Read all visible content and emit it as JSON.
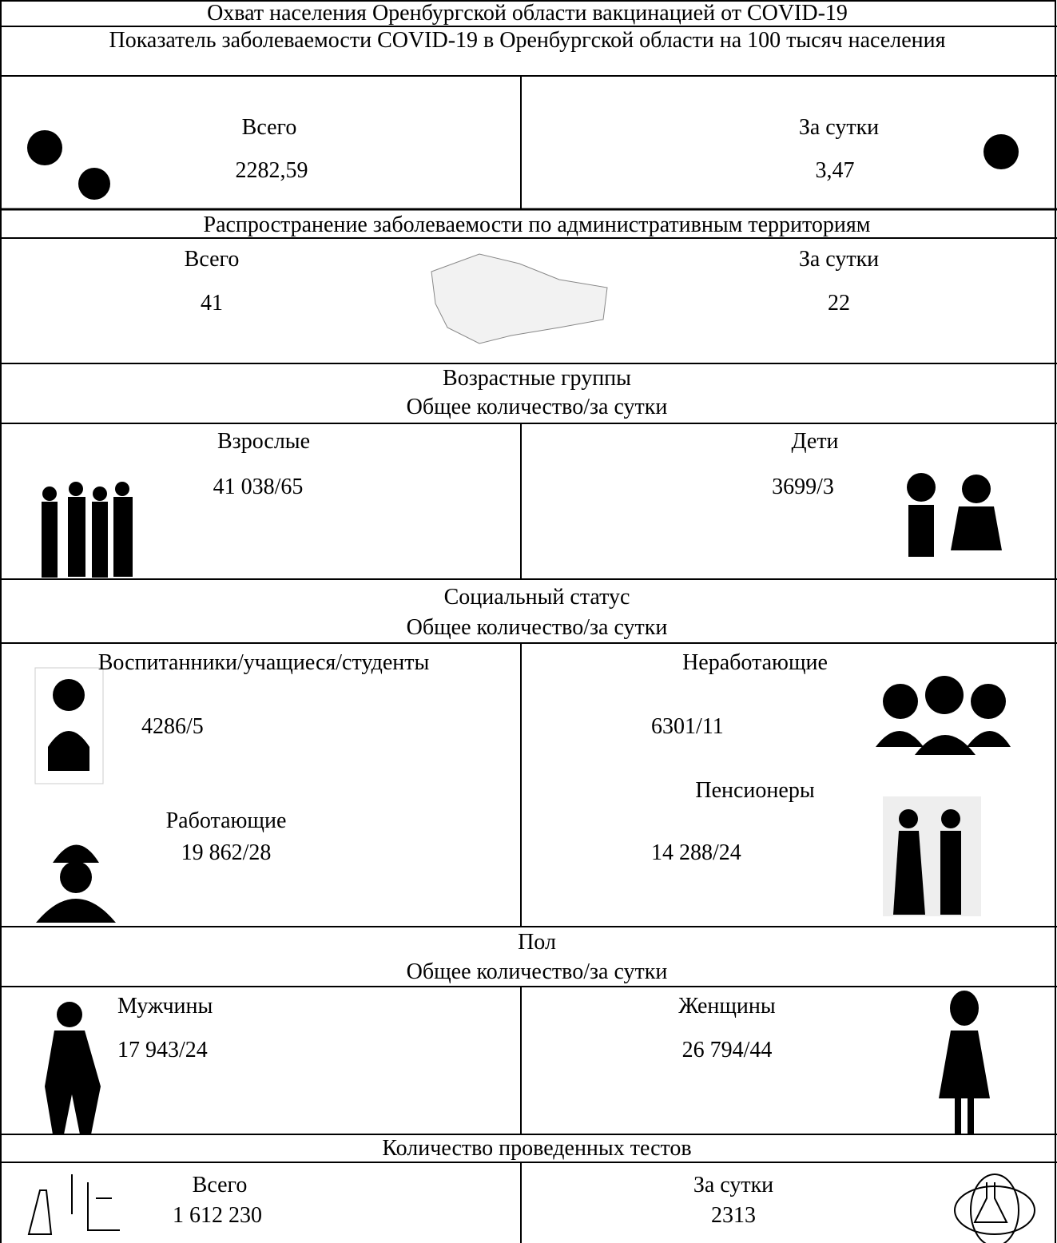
{
  "title": "Охват населения Оренбургской области вакцинацией от COVID-19",
  "incidence": {
    "title": "Показатель заболеваемости COVID-19 в Оренбургской области на 100 тысяч населения",
    "total": {
      "label": "Всего",
      "value": "2282,59"
    },
    "daily": {
      "label": "За сутки",
      "value": "3,47"
    }
  },
  "territories": {
    "title": "Распространение заболеваемости по административным территориям",
    "total": {
      "label": "Всего",
      "value": "41"
    },
    "daily": {
      "label": "За сутки",
      "value": "22"
    }
  },
  "age_groups": {
    "title": "Возрастные группы",
    "subtitle": "Общее количество/за сутки",
    "adults": {
      "label": "Взрослые",
      "value": "41 038/65"
    },
    "children": {
      "label": "Дети",
      "value": "3699/3"
    }
  },
  "social_status": {
    "title": "Социальный статус",
    "subtitle": "Общее количество/за сутки",
    "students": {
      "label": "Воспитанники/учащиеся/студенты",
      "value": "4286/5"
    },
    "workers": {
      "label": "Работающие",
      "value": "19 862/28"
    },
    "unemployed": {
      "label": "Неработающие",
      "value": "6301/11"
    },
    "pensioners": {
      "label": "Пенсионеры",
      "value": "14 288/24"
    }
  },
  "sex": {
    "title": "Пол",
    "subtitle": "Общее количество/за сутки",
    "men": {
      "label": "Мужчины",
      "value": "17 943/24"
    },
    "women": {
      "label": "Женщины",
      "value": "26 794/44"
    }
  },
  "tests": {
    "title": "Количество проведенных тестов",
    "total": {
      "label": "Всего",
      "value": "1 612 230"
    },
    "daily": {
      "label": "За сутки",
      "value": "2313"
    }
  }
}
